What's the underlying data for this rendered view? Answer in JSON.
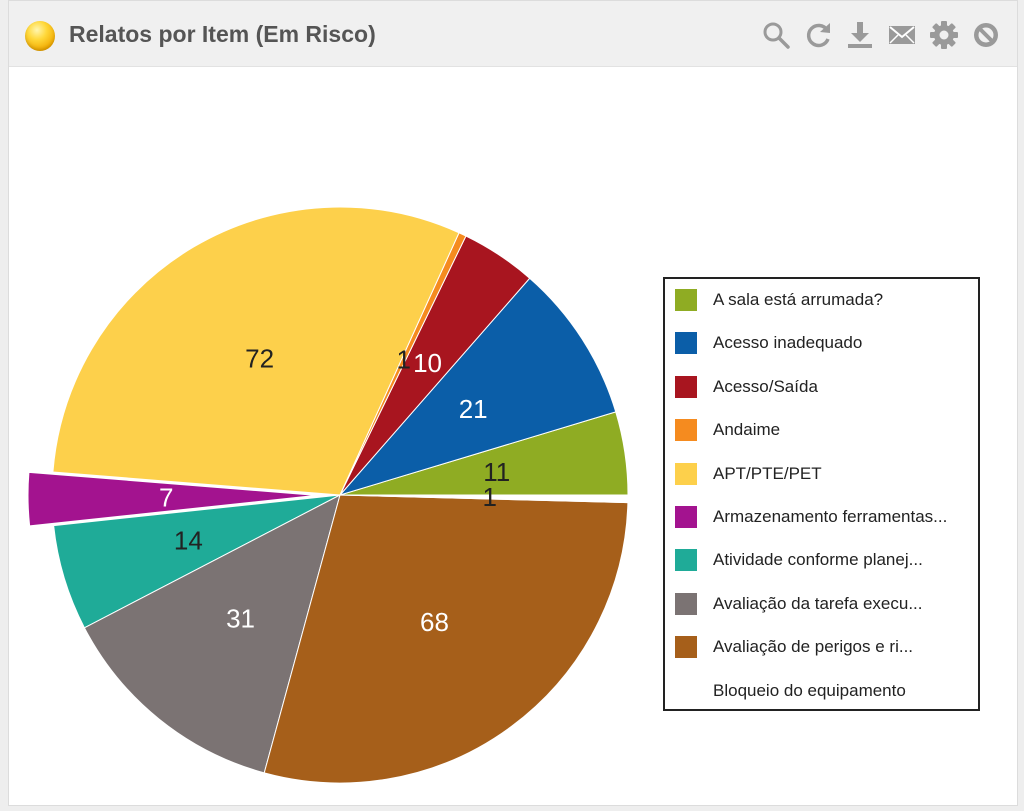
{
  "header": {
    "title": "Relatos por Item (Em Risco)",
    "tools": [
      {
        "icon": "search-icon"
      },
      {
        "icon": "refresh-icon"
      },
      {
        "icon": "download-icon"
      },
      {
        "icon": "mail-icon"
      },
      {
        "icon": "gear-icon"
      },
      {
        "icon": "block-icon"
      }
    ]
  },
  "chart_data": {
    "type": "pie",
    "title": "Relatos por Item (Em Risco)",
    "legend_position": "right",
    "slices": [
      {
        "label": "A sala está arrumada?",
        "legend": "A sala está arrumada?",
        "value": 11,
        "color": "#8fac23",
        "label_color": "#222222"
      },
      {
        "label": "Acesso inadequado",
        "legend": "Acesso inadequado",
        "value": 21,
        "color": "#0b5ea8",
        "label_color": "#ffffff"
      },
      {
        "label": "Acesso/Saída",
        "legend": "Acesso/Saída",
        "value": 10,
        "color": "#a8151f",
        "label_color": "#ffffff"
      },
      {
        "label": "Andaime",
        "legend": "Andaime",
        "value": 1,
        "color": "#f58b1f",
        "label_color": "#222222"
      },
      {
        "label": "APT/PTE/PET",
        "legend": "APT/PTE/PET",
        "value": 72,
        "color": "#fdd04b",
        "label_color": "#222222"
      },
      {
        "label": "Armazenamento ferramentas",
        "legend": "Armazenamento ferramentas...",
        "value": 7,
        "color": "#a3138f",
        "label_color": "#ffffff",
        "exploded": true
      },
      {
        "label": "Atividade conforme planejada",
        "legend": "Atividade conforme planej...",
        "value": 14,
        "color": "#1fab98",
        "label_color": "#222222"
      },
      {
        "label": "Avaliação da tarefa executada",
        "legend": "Avaliação da tarefa execu...",
        "value": 31,
        "color": "#7b7373",
        "label_color": "#ffffff"
      },
      {
        "label": "Avaliação de perigos e riscos",
        "legend": "Avaliação de perigos e ri...",
        "value": 68,
        "color": "#a65f1a",
        "label_color": "#ffffff"
      },
      {
        "label": "Bloqueio do equipamento",
        "legend": "Bloqueio do equipamento",
        "value": 1,
        "color": "#ffffff",
        "label_color": "#222222"
      }
    ]
  }
}
